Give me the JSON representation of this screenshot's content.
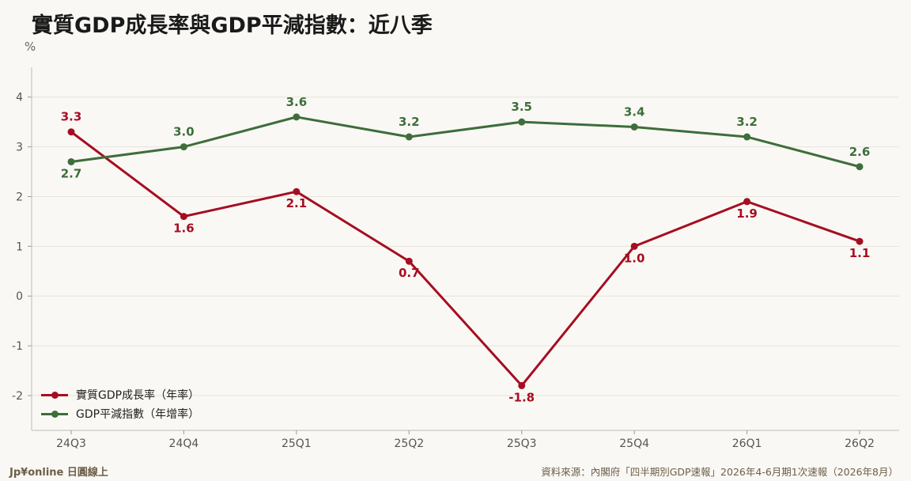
{
  "title": "實質GDP成長率與GDP平減指數：近八季",
  "unit": "%",
  "brand": "Jp¥online 日圓線上",
  "source": "資料來源：內閣府「四半期別GDP速報」2026年4-6月期1次速報（2026年8月）",
  "colors": {
    "series1": "#a50e22",
    "series2": "#3d6e3b",
    "grid": "#e6e3dc",
    "axis": "#777"
  },
  "chart_data": {
    "type": "line",
    "title": "實質GDP成長率與GDP平減指數：近八季",
    "ylabel": "%",
    "xlabel": "",
    "categories": [
      "24Q3",
      "24Q4",
      "25Q1",
      "25Q2",
      "25Q3",
      "25Q4",
      "26Q1",
      "26Q2"
    ],
    "ylim": [
      -2.7,
      4.6
    ],
    "yticks": [
      -2,
      -1,
      0,
      1,
      2,
      3,
      4
    ],
    "grid": true,
    "legend": "bottom-left",
    "series": [
      {
        "name": "實質GDP成長率（年率）",
        "values": [
          3.3,
          1.6,
          2.1,
          0.7,
          -1.8,
          1.0,
          1.9,
          1.1
        ],
        "labels": [
          "3.3",
          "1.6",
          "2.1",
          "0.7",
          "-1.8",
          "1.0",
          "1.9",
          "1.1"
        ]
      },
      {
        "name": "GDP平減指數（年增率）",
        "values": [
          2.7,
          3.0,
          3.6,
          3.2,
          3.5,
          3.4,
          3.2,
          2.6
        ],
        "labels": [
          "2.7",
          "3.0",
          "3.6",
          "3.2",
          "3.5",
          "3.4",
          "3.2",
          "2.6"
        ]
      }
    ]
  }
}
